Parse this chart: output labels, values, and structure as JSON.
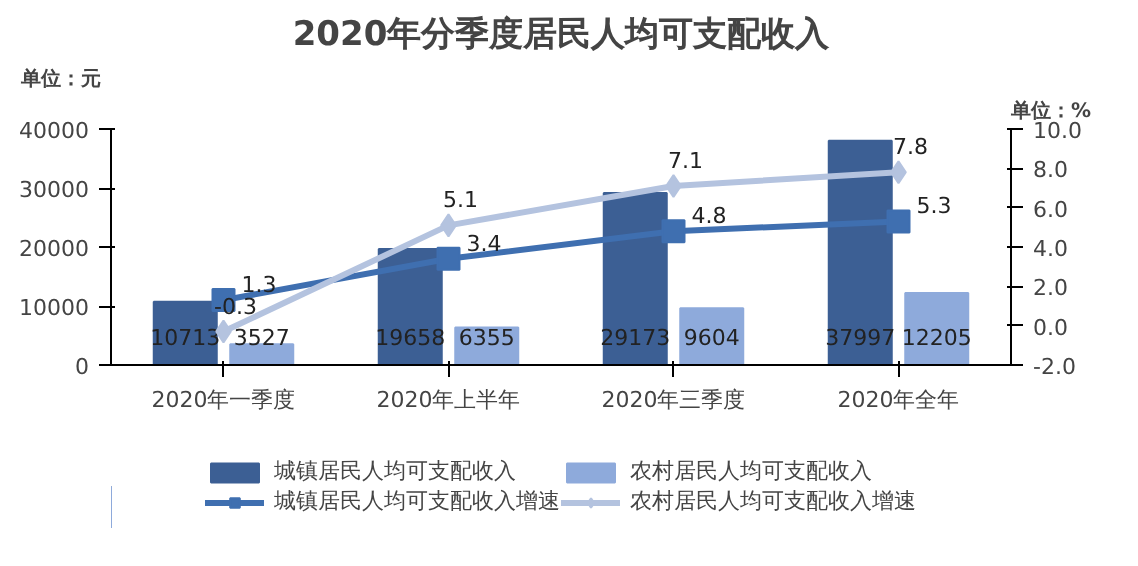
{
  "chart_data": {
    "type": "bar",
    "title": "2020年分季度居民人均可支配收入",
    "ylabel": "单位：元",
    "y2label": "单位：%",
    "categories": [
      "2020年一季度",
      "2020年上半年",
      "2020年三季度",
      "2020年全年"
    ],
    "series": [
      {
        "name": "城镇居民人均可支配收入",
        "color": "#3c5f94",
        "values": [
          10713,
          19658,
          29173,
          37997
        ]
      },
      {
        "name": "农村居民人均可支配收入",
        "color": "#8eaadb",
        "values": [
          3527,
          6355,
          9604,
          12205
        ]
      },
      {
        "name": "城镇居民人均可支配收入增速",
        "type": "line",
        "axis": "y2",
        "marker": "square",
        "color": "#3f6fb0",
        "values": [
          1.3,
          3.4,
          4.8,
          5.3
        ]
      },
      {
        "name": "农村居民人均可支配收入增速",
        "type": "line",
        "axis": "y2",
        "marker": "diamond",
        "color": "#b4c3df",
        "values": [
          -0.3,
          5.1,
          7.1,
          7.8
        ]
      }
    ],
    "ylim": [
      0,
      40000
    ],
    "yticks": [
      0,
      10000,
      20000,
      30000,
      40000
    ],
    "y2lim": [
      -2,
      10
    ],
    "y2ticks": [
      {
        "value": -2,
        "label": "-2.0"
      },
      {
        "value": 0,
        "label": "0.0"
      },
      {
        "value": 2,
        "label": "2.0"
      },
      {
        "value": 4,
        "label": "4.0"
      },
      {
        "value": 6,
        "label": "6.0"
      },
      {
        "value": 8,
        "label": "8.0"
      },
      {
        "value": 10,
        "label": "10.0"
      }
    ],
    "data_labels": true,
    "legend": "bottom",
    "grid": false
  }
}
